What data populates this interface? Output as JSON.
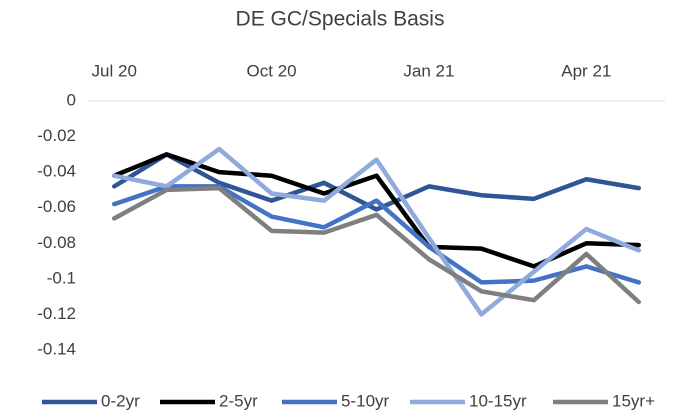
{
  "chart_data": {
    "type": "line",
    "title": "DE GC/Specials Basis",
    "categories": [
      "Jul 20",
      null,
      null,
      "Oct 20",
      null,
      null,
      "Jan 21",
      null,
      null,
      "Apr 21",
      null
    ],
    "series": [
      {
        "name": "0-2yr",
        "color": "#2f5597",
        "values": [
          -0.048,
          -0.03,
          -0.046,
          -0.056,
          -0.046,
          -0.061,
          -0.048,
          -0.053,
          -0.055,
          -0.044,
          -0.049
        ]
      },
      {
        "name": "2-5yr",
        "color": "#000000",
        "values": [
          -0.042,
          -0.03,
          -0.04,
          -0.042,
          -0.052,
          -0.042,
          -0.082,
          -0.083,
          -0.093,
          -0.08,
          -0.081
        ]
      },
      {
        "name": "5-10yr",
        "color": "#4472c4",
        "values": [
          -0.058,
          -0.048,
          -0.048,
          -0.065,
          -0.071,
          -0.056,
          -0.082,
          -0.102,
          -0.101,
          -0.093,
          -0.102
        ]
      },
      {
        "name": "10-15yr",
        "color": "#8faadc",
        "values": [
          -0.042,
          -0.048,
          -0.027,
          -0.052,
          -0.056,
          -0.033,
          -0.077,
          -0.12,
          -0.096,
          -0.072,
          -0.084
        ]
      },
      {
        "name": "15yr+",
        "color": "#7f7f7f",
        "values": [
          -0.066,
          -0.05,
          -0.049,
          -0.073,
          -0.074,
          -0.064,
          -0.089,
          -0.107,
          -0.112,
          -0.086,
          -0.113
        ]
      }
    ],
    "ylim": [
      -0.14,
      0
    ],
    "yticks": [
      0,
      -0.02,
      -0.04,
      -0.06,
      -0.08,
      -0.1,
      -0.12,
      -0.14
    ],
    "grid": false,
    "legend": "bottom"
  }
}
